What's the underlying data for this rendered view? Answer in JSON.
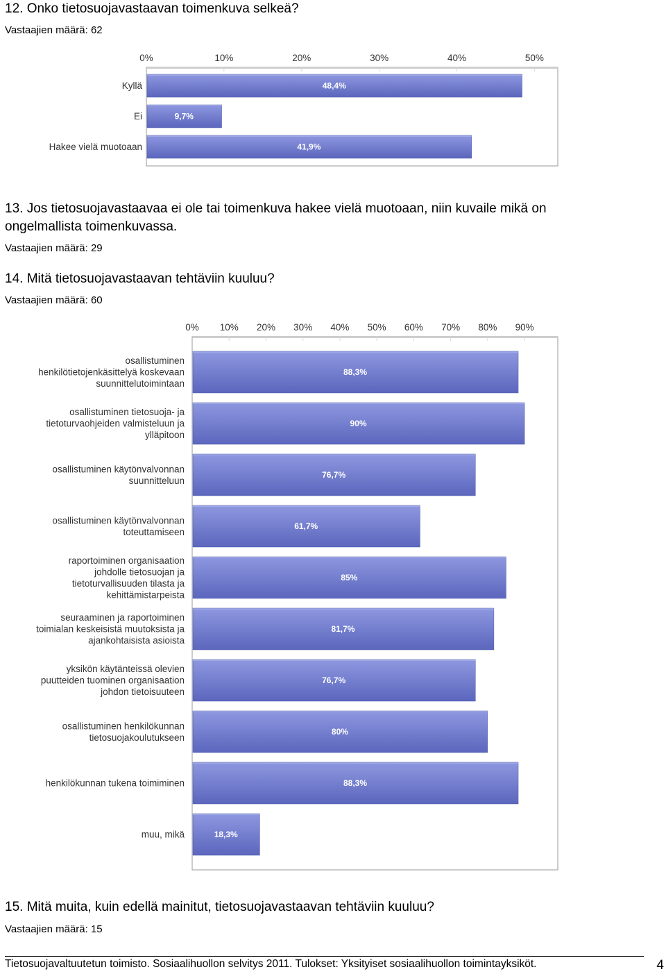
{
  "q12": {
    "title": "12. Onko tietosuojavastaavan toimenkuva selkeä?",
    "count": "Vastaajien määrä: 62"
  },
  "q13": {
    "title_line1": "13. Jos tietosuojavastaavaa ei ole tai toimenkuva hakee vielä muotoaan, niin kuvaile mikä on",
    "title_line2": "ongelmallista toimenkuvassa.",
    "count": "Vastaajien määrä: 29"
  },
  "q14": {
    "title": "14. Mitä tietosuojavastaavan tehtäviin kuuluu?",
    "count": "Vastaajien määrä: 60"
  },
  "q15": {
    "title": "15. Mitä muita, kuin edellä mainitut, tietosuojavastaavan tehtäviin kuuluu?",
    "count": "Vastaajien määrä: 15"
  },
  "footer": {
    "text": "Tietosuojavaltuutetun toimisto. Sosiaalihuollon selvitys 2011. Tulokset: Yksityiset sosiaalihuollon toimintayksiköt.",
    "page": "4"
  },
  "colors": {
    "bar_top": "#8e98e0",
    "bar_bottom": "#5b66bd",
    "plot_border": "#999999",
    "grid": "#d8d8d8"
  },
  "chart_data": [
    {
      "type": "bar",
      "orientation": "horizontal",
      "ticks": [
        "0%",
        "10%",
        "20%",
        "30%",
        "40%",
        "50%"
      ],
      "xlim": [
        0,
        53
      ],
      "categories": [
        [
          "Kyllä"
        ],
        [
          "Ei"
        ],
        [
          "Hakee vielä muotoaan"
        ]
      ],
      "values": [
        48.4,
        9.7,
        41.9
      ],
      "labels": [
        "48,4%",
        "9,7%",
        "41,9%"
      ]
    },
    {
      "type": "bar",
      "orientation": "horizontal",
      "ticks": [
        "0%",
        "10%",
        "20%",
        "30%",
        "40%",
        "50%",
        "60%",
        "70%",
        "80%",
        "90%"
      ],
      "xlim": [
        0,
        99
      ],
      "categories": [
        [
          "osallistuminen",
          "henkilötietojenkäsittelyä koskevaan",
          "suunnittelutoimintaan"
        ],
        [
          "osallistuminen tietosuoja- ja",
          "tietoturvaohjeiden valmisteluun ja",
          "ylläpitoon"
        ],
        [
          "osallistuminen käytönvalvonnan",
          "suunnitteluun"
        ],
        [
          "osallistuminen käytönvalvonnan",
          "toteuttamiseen"
        ],
        [
          "raportoiminen organisaation",
          "johdolle tietosuojan ja",
          "tietoturvallisuuden tilasta ja",
          "kehittämistarpeista"
        ],
        [
          "seuraaminen ja raportoiminen",
          "toimialan keskeisistä muutoksista ja",
          "ajankohtaisista asioista"
        ],
        [
          "yksikön käytänteissä olevien",
          "puutteiden tuominen organisaation",
          "johdon tietoisuuteen"
        ],
        [
          "osallistuminen henkilökunnan",
          "tietosuojakoulutukseen"
        ],
        [
          "henkilökunnan tukena toimiminen"
        ],
        [
          "muu, mikä"
        ]
      ],
      "values": [
        88.3,
        90,
        76.7,
        61.7,
        85,
        81.7,
        76.7,
        80,
        88.3,
        18.3
      ],
      "labels": [
        "88,3%",
        "90%",
        "76,7%",
        "61,7%",
        "85%",
        "81,7%",
        "76,7%",
        "80%",
        "88,3%",
        "18,3%"
      ]
    }
  ]
}
